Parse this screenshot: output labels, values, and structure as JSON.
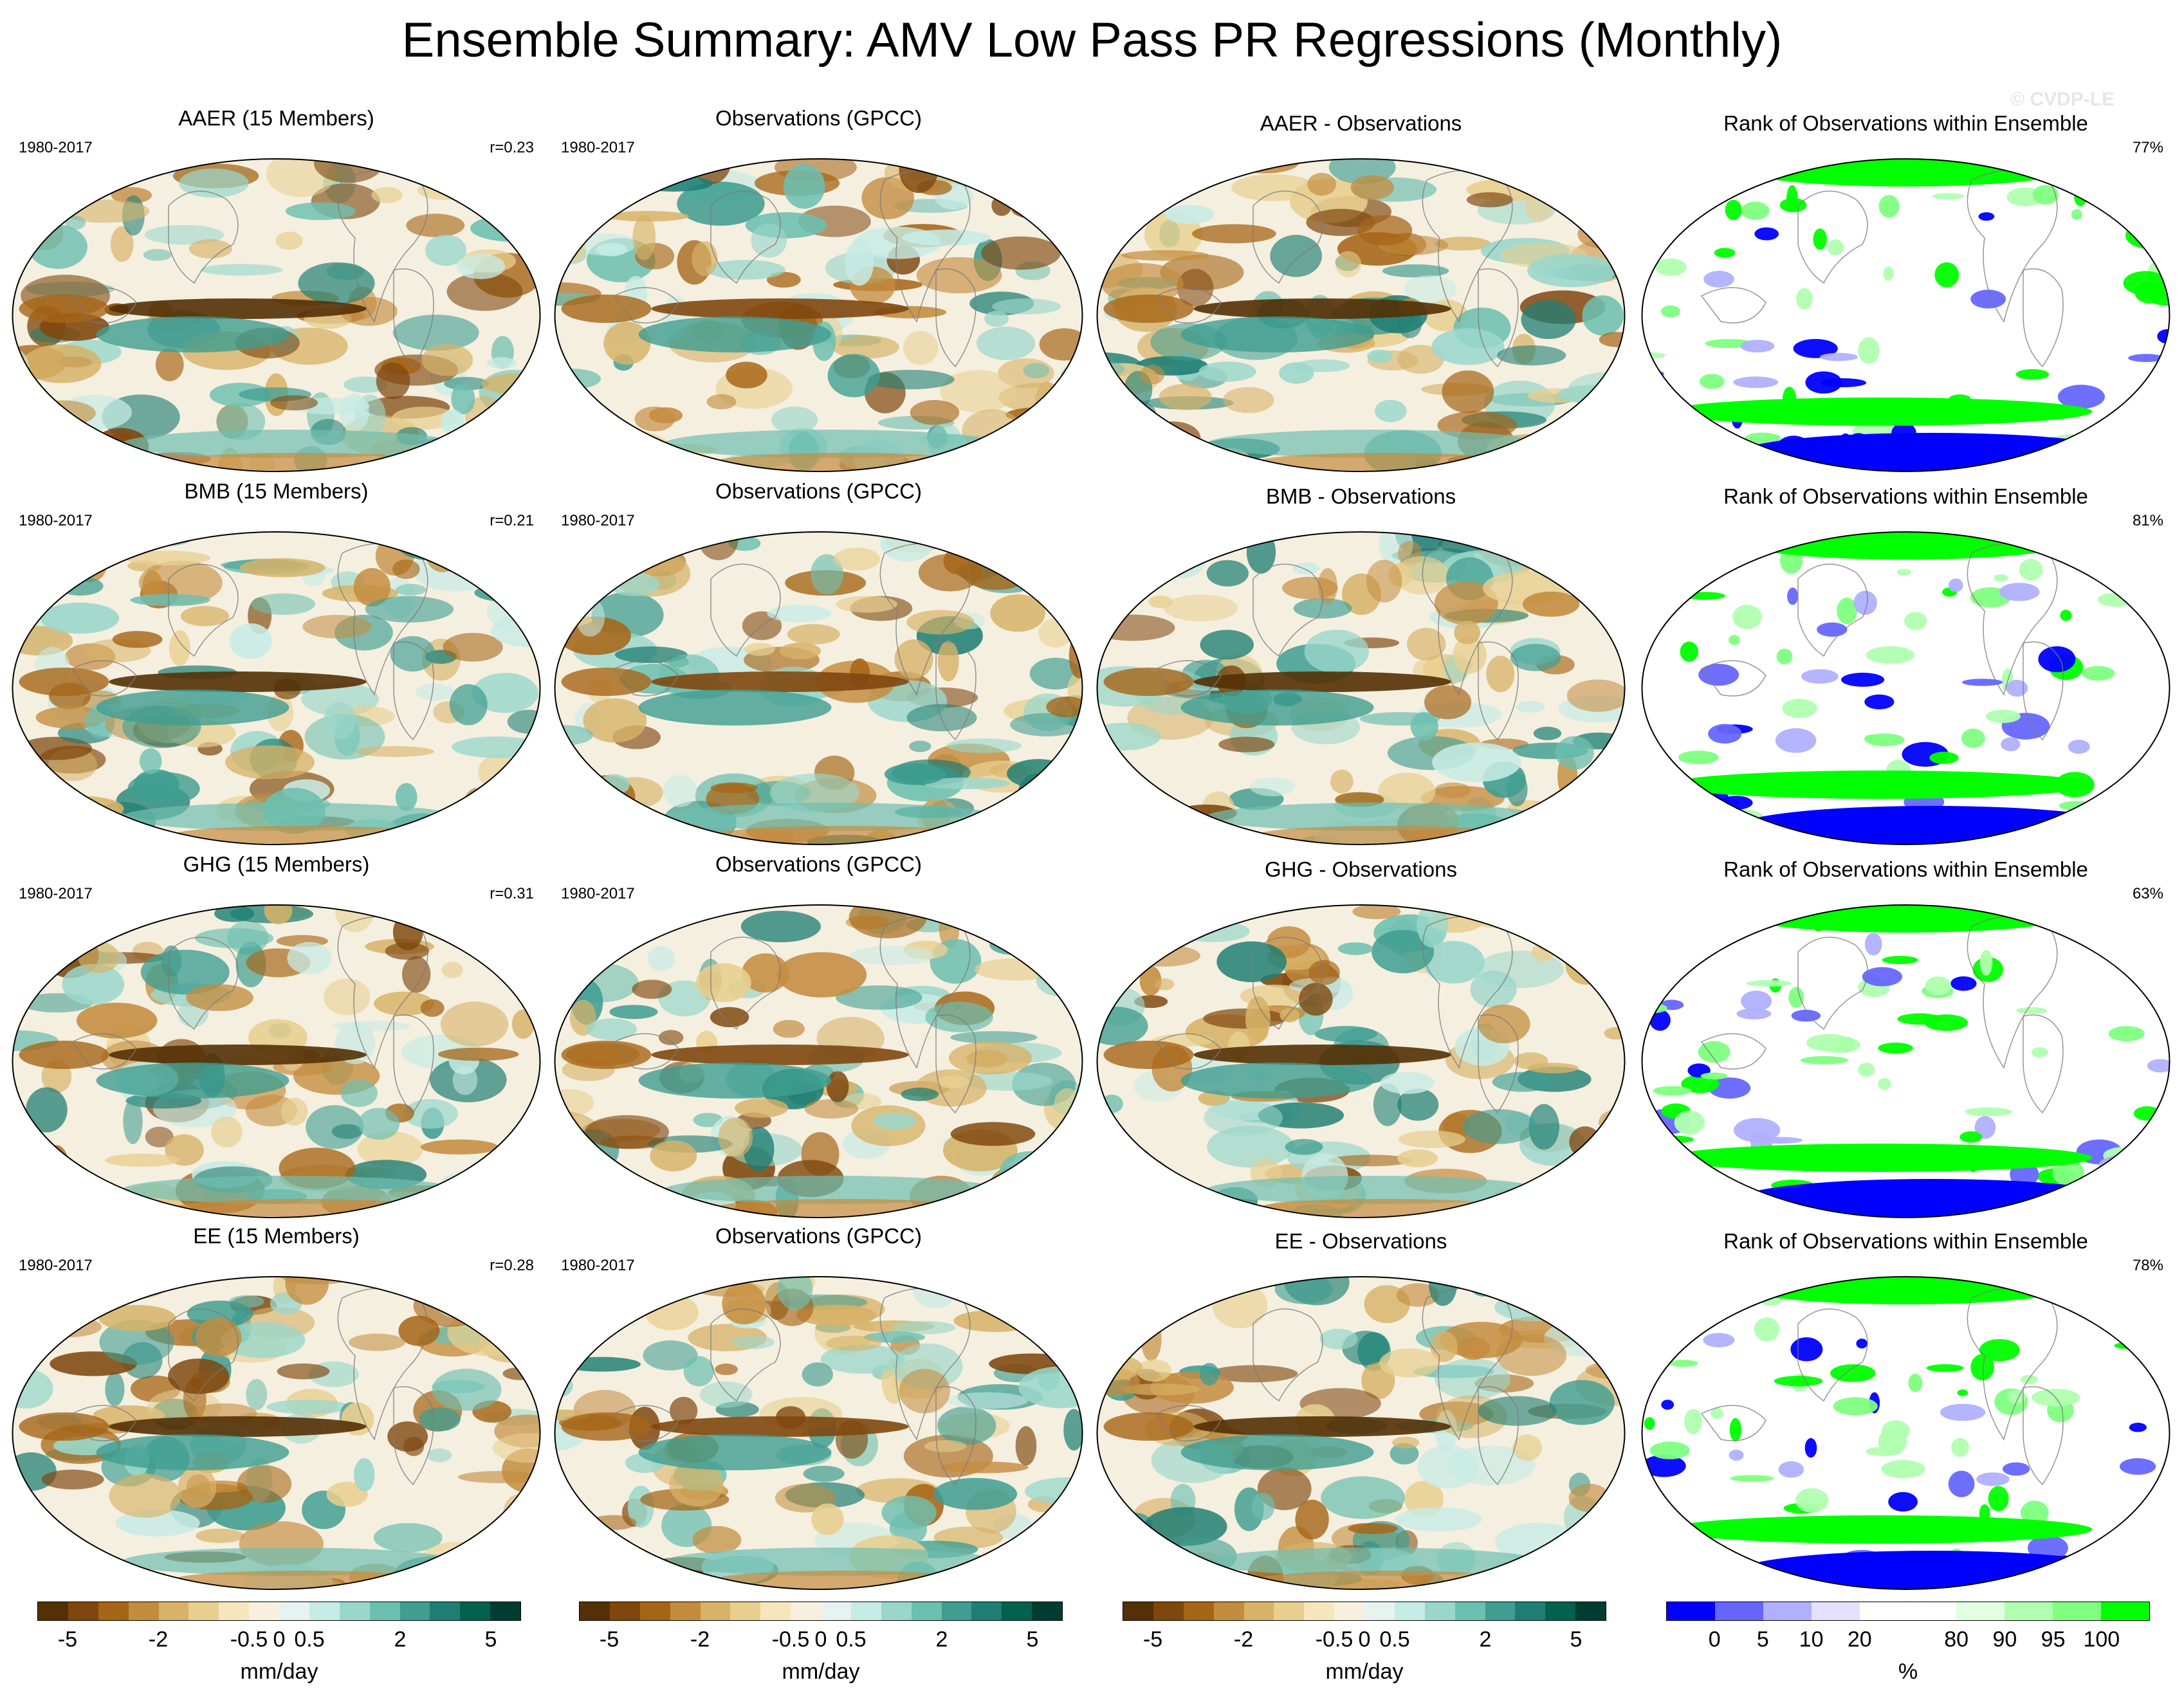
{
  "title": "Ensemble Summary: AMV Low Pass PR Regressions (Monthly)",
  "watermark": "© CVDP-LE",
  "colors": {
    "brown_dark": "#543005",
    "teal_dark": "#003c30",
    "rank_blue": "#0000ff",
    "rank_green": "#00ff00"
  },
  "rows": [
    {
      "forcing": "AAER",
      "panels": [
        {
          "kind": "model",
          "title": "AAER (15 Members)",
          "years": "1980-2017",
          "stat": "r=0.23"
        },
        {
          "kind": "obs",
          "title": "Observations (GPCC)",
          "years": "1980-2017",
          "stat": ""
        },
        {
          "kind": "diff",
          "title": "AAER - Observations",
          "years": "",
          "stat": ""
        },
        {
          "kind": "rank",
          "title": "Rank of Observations within Ensemble",
          "years": "",
          "stat": "77%"
        }
      ]
    },
    {
      "forcing": "BMB",
      "panels": [
        {
          "kind": "model",
          "title": "BMB (15 Members)",
          "years": "1980-2017",
          "stat": "r=0.21"
        },
        {
          "kind": "obs",
          "title": "Observations (GPCC)",
          "years": "1980-2017",
          "stat": ""
        },
        {
          "kind": "diff",
          "title": "BMB - Observations",
          "years": "",
          "stat": ""
        },
        {
          "kind": "rank",
          "title": "Rank of Observations within Ensemble",
          "years": "",
          "stat": "81%"
        }
      ]
    },
    {
      "forcing": "GHG",
      "panels": [
        {
          "kind": "model",
          "title": "GHG (15 Members)",
          "years": "1980-2017",
          "stat": "r=0.31"
        },
        {
          "kind": "obs",
          "title": "Observations (GPCC)",
          "years": "1980-2017",
          "stat": ""
        },
        {
          "kind": "diff",
          "title": "GHG - Observations",
          "years": "",
          "stat": ""
        },
        {
          "kind": "rank",
          "title": "Rank of Observations within Ensemble",
          "years": "",
          "stat": "63%"
        }
      ]
    },
    {
      "forcing": "EE",
      "panels": [
        {
          "kind": "model",
          "title": "EE (15 Members)",
          "years": "1980-2017",
          "stat": "r=0.28"
        },
        {
          "kind": "obs",
          "title": "Observations (GPCC)",
          "years": "1980-2017",
          "stat": ""
        },
        {
          "kind": "diff",
          "title": "EE - Observations",
          "years": "",
          "stat": ""
        },
        {
          "kind": "rank",
          "title": "Rank of Observations within Ensemble",
          "years": "",
          "stat": "78%"
        }
      ]
    }
  ],
  "colorbars": [
    {
      "unit": "mm/day",
      "colors": [
        "#543005",
        "#7f470e",
        "#a66516",
        "#c48c3f",
        "#d7b267",
        "#e8cf90",
        "#f5e6bd",
        "#f7f0de",
        "#e6f3f0",
        "#c7ebe5",
        "#9ad7cb",
        "#6dbfb0",
        "#3f9d91",
        "#1e7e73",
        "#02614f",
        "#003c30"
      ],
      "labels": [
        "-5",
        "-2",
        "-0.5",
        "0",
        "0.5",
        "2",
        "5"
      ],
      "label_positions": [
        1,
        4,
        7,
        8,
        9,
        12,
        15
      ]
    },
    {
      "unit": "mm/day",
      "colors": [
        "#543005",
        "#7f470e",
        "#a66516",
        "#c48c3f",
        "#d7b267",
        "#e8cf90",
        "#f5e6bd",
        "#f7f0de",
        "#e6f3f0",
        "#c7ebe5",
        "#9ad7cb",
        "#6dbfb0",
        "#3f9d91",
        "#1e7e73",
        "#02614f",
        "#003c30"
      ],
      "labels": [
        "-5",
        "-2",
        "-0.5",
        "0",
        "0.5",
        "2",
        "5"
      ],
      "label_positions": [
        1,
        4,
        7,
        8,
        9,
        12,
        15
      ]
    },
    {
      "unit": "mm/day",
      "colors": [
        "#543005",
        "#7f470e",
        "#a66516",
        "#c48c3f",
        "#d7b267",
        "#e8cf90",
        "#f5e6bd",
        "#f7f0de",
        "#e6f3f0",
        "#c7ebe5",
        "#9ad7cb",
        "#6dbfb0",
        "#3f9d91",
        "#1e7e73",
        "#02614f",
        "#003c30"
      ],
      "labels": [
        "-5",
        "-2",
        "-0.5",
        "0",
        "0.5",
        "2",
        "5"
      ],
      "label_positions": [
        1,
        4,
        7,
        8,
        9,
        12,
        15
      ]
    },
    {
      "unit": "%",
      "colors": [
        "#0000ff",
        "#6666ff",
        "#b0b0ff",
        "#e2e2ff",
        "#ffffff",
        "#ffffff",
        "#e2ffe2",
        "#b0ffb0",
        "#80ff80",
        "#00ff00"
      ],
      "labels": [
        "0",
        "5",
        "10",
        "20",
        "80",
        "90",
        "95",
        "100"
      ],
      "label_positions": [
        1,
        2,
        3,
        4,
        6,
        7,
        8,
        9
      ]
    }
  ]
}
